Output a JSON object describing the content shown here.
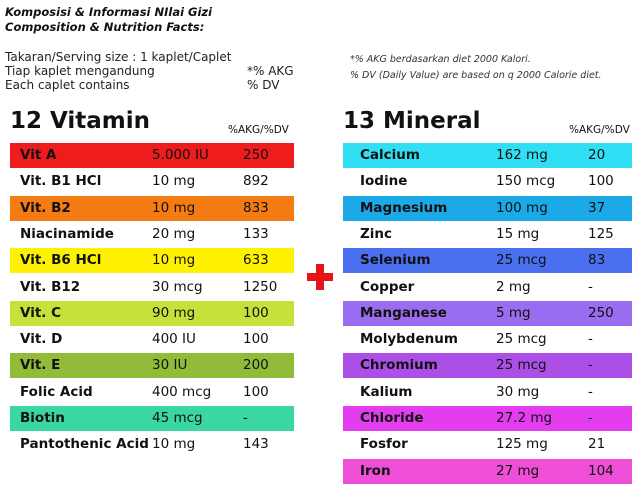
{
  "header": {
    "title": "Komposisi & Informasi NIlai Gizi",
    "subtitle": "Composition & Nutrition Facts:"
  },
  "serving": {
    "size": "Takaran/Serving size : 1 kaplet/Caplet",
    "per_id": "Tiap kaplet mengandung",
    "per_en": "Each caplet contains",
    "akg": "*% AKG",
    "dv": "% DV"
  },
  "note": {
    "line1": "*% AKG berdasarkan diet 2000 Kalori.",
    "line2": "% DV (Daily Value) are based on q 2000 Calorie diet."
  },
  "vitamin": {
    "title": "12 Vitamin",
    "column": "%AKG/%DV",
    "rows": [
      [
        "Vit A",
        "5.000 IU",
        "250"
      ],
      [
        "Vit. B1 HCl",
        "10 mg",
        "892"
      ],
      [
        "Vit. B2",
        "10 mg",
        "833"
      ],
      [
        "Niacinamide",
        "20 mg",
        "133"
      ],
      [
        "Vit. B6 HCl",
        "10 mg",
        "633"
      ],
      [
        "Vit. B12",
        "30 mcg",
        "1250"
      ],
      [
        "Vit. C",
        "90 mg",
        "100"
      ],
      [
        "Vit. D",
        "400 IU",
        "100"
      ],
      [
        "Vit. E",
        "30 IU",
        "200"
      ],
      [
        "Folic Acid",
        "400 mcg",
        "100"
      ],
      [
        "Biotin",
        "45 mcg",
        "-"
      ],
      [
        "Pantothenic Acid",
        "10 mg",
        "143"
      ]
    ]
  },
  "mineral": {
    "title": "13 Mineral",
    "column": "%AKG/%DV",
    "rows": [
      [
        "Calcium",
        "162 mg",
        "20"
      ],
      [
        "Iodine",
        "150 mcg",
        "100"
      ],
      [
        "Magnesium",
        "100 mg",
        "37"
      ],
      [
        "Zinc",
        "15 mg",
        "125"
      ],
      [
        "Selenium",
        "25 mcg",
        "83"
      ],
      [
        "Copper",
        "2 mg",
        "-"
      ],
      [
        "Manganese",
        "5 mg",
        "250"
      ],
      [
        "Molybdenum",
        "25 mcg",
        "-"
      ],
      [
        "Chromium",
        "25 mcg",
        "-"
      ],
      [
        "Kalium",
        "30 mg",
        "-"
      ],
      [
        "Chloride",
        "27.2 mg",
        "-"
      ],
      [
        "Fosfor",
        "125 mg",
        "21"
      ],
      [
        "Iron",
        "27 mg",
        "104"
      ]
    ]
  }
}
